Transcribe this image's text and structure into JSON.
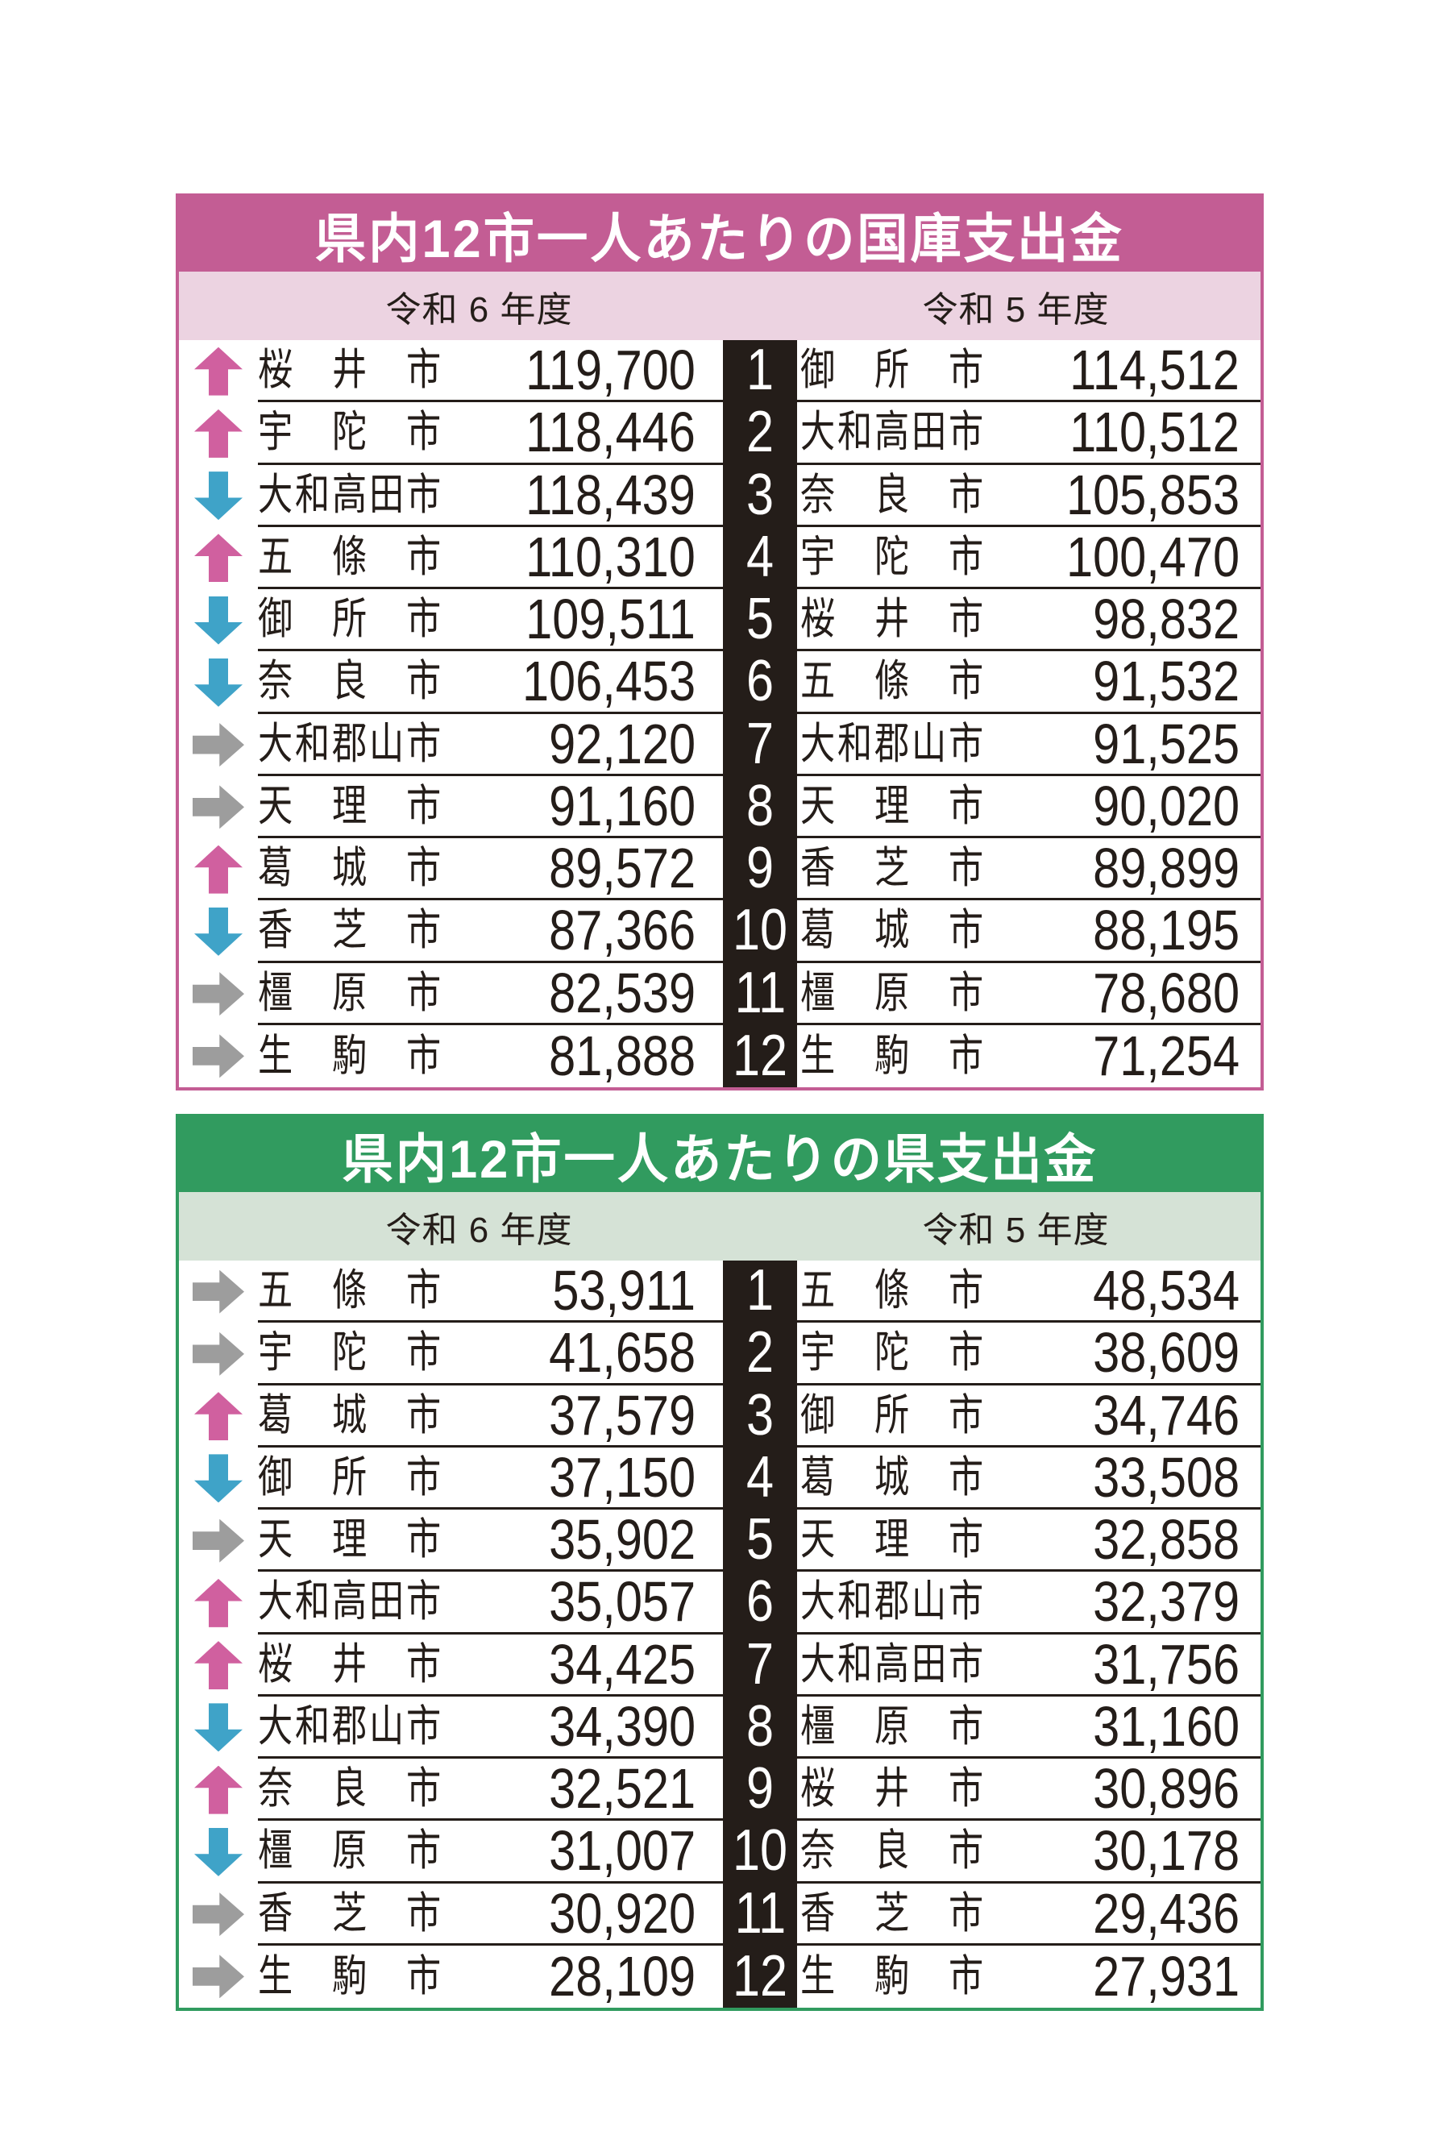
{
  "colors": {
    "text": "#241d19",
    "rank_bg": "#241d19",
    "rank_text": "#ffffff",
    "arrow_up": "#d0609f",
    "arrow_down": "#3fa3c8",
    "arrow_flat": "#9d9d9d"
  },
  "tables": [
    {
      "id": "national-treasury",
      "title": "県内12市一人あたりの国庫支出金",
      "accent": "#c35d94",
      "sub_bg": "#ecd3e1",
      "col_headers": [
        "令和 6 年度",
        "令和 5 年度"
      ],
      "rows": [
        {
          "rank": "1",
          "trend": "up",
          "city_r6": "桜井市",
          "value_r6": "119,700",
          "city_r5": "御所市",
          "value_r5": "114,512"
        },
        {
          "rank": "2",
          "trend": "up",
          "city_r6": "宇陀市",
          "value_r6": "118,446",
          "city_r5": "大和高田市",
          "value_r5": "110,512"
        },
        {
          "rank": "3",
          "trend": "down",
          "city_r6": "大和高田市",
          "value_r6": "118,439",
          "city_r5": "奈良市",
          "value_r5": "105,853"
        },
        {
          "rank": "4",
          "trend": "up",
          "city_r6": "五條市",
          "value_r6": "110,310",
          "city_r5": "宇陀市",
          "value_r5": "100,470"
        },
        {
          "rank": "5",
          "trend": "down",
          "city_r6": "御所市",
          "value_r6": "109,511",
          "city_r5": "桜井市",
          "value_r5": "98,832"
        },
        {
          "rank": "6",
          "trend": "down",
          "city_r6": "奈良市",
          "value_r6": "106,453",
          "city_r5": "五條市",
          "value_r5": "91,532"
        },
        {
          "rank": "7",
          "trend": "flat",
          "city_r6": "大和郡山市",
          "value_r6": "92,120",
          "city_r5": "大和郡山市",
          "value_r5": "91,525"
        },
        {
          "rank": "8",
          "trend": "flat",
          "city_r6": "天理市",
          "value_r6": "91,160",
          "city_r5": "天理市",
          "value_r5": "90,020"
        },
        {
          "rank": "9",
          "trend": "up",
          "city_r6": "葛城市",
          "value_r6": "89,572",
          "city_r5": "香芝市",
          "value_r5": "89,899"
        },
        {
          "rank": "10",
          "trend": "down",
          "city_r6": "香芝市",
          "value_r6": "87,366",
          "city_r5": "葛城市",
          "value_r5": "88,195"
        },
        {
          "rank": "11",
          "trend": "flat",
          "city_r6": "橿原市",
          "value_r6": "82,539",
          "city_r5": "橿原市",
          "value_r5": "78,680"
        },
        {
          "rank": "12",
          "trend": "flat",
          "city_r6": "生駒市",
          "value_r6": "81,888",
          "city_r5": "生駒市",
          "value_r5": "71,254"
        }
      ]
    },
    {
      "id": "prefectural",
      "title": "県内12市一人あたりの県支出金",
      "accent": "#319b5f",
      "sub_bg": "#d5e2d6",
      "col_headers": [
        "令和 6 年度",
        "令和 5 年度"
      ],
      "rows": [
        {
          "rank": "1",
          "trend": "flat",
          "city_r6": "五條市",
          "value_r6": "53,911",
          "city_r5": "五條市",
          "value_r5": "48,534"
        },
        {
          "rank": "2",
          "trend": "flat",
          "city_r6": "宇陀市",
          "value_r6": "41,658",
          "city_r5": "宇陀市",
          "value_r5": "38,609"
        },
        {
          "rank": "3",
          "trend": "up",
          "city_r6": "葛城市",
          "value_r6": "37,579",
          "city_r5": "御所市",
          "value_r5": "34,746"
        },
        {
          "rank": "4",
          "trend": "down",
          "city_r6": "御所市",
          "value_r6": "37,150",
          "city_r5": "葛城市",
          "value_r5": "33,508"
        },
        {
          "rank": "5",
          "trend": "flat",
          "city_r6": "天理市",
          "value_r6": "35,902",
          "city_r5": "天理市",
          "value_r5": "32,858"
        },
        {
          "rank": "6",
          "trend": "up",
          "city_r6": "大和高田市",
          "value_r6": "35,057",
          "city_r5": "大和郡山市",
          "value_r5": "32,379"
        },
        {
          "rank": "7",
          "trend": "up",
          "city_r6": "桜井市",
          "value_r6": "34,425",
          "city_r5": "大和高田市",
          "value_r5": "31,756"
        },
        {
          "rank": "8",
          "trend": "down",
          "city_r6": "大和郡山市",
          "value_r6": "34,390",
          "city_r5": "橿原市",
          "value_r5": "31,160"
        },
        {
          "rank": "9",
          "trend": "up",
          "city_r6": "奈良市",
          "value_r6": "32,521",
          "city_r5": "桜井市",
          "value_r5": "30,896"
        },
        {
          "rank": "10",
          "trend": "down",
          "city_r6": "橿原市",
          "value_r6": "31,007",
          "city_r5": "奈良市",
          "value_r5": "30,178"
        },
        {
          "rank": "11",
          "trend": "flat",
          "city_r6": "香芝市",
          "value_r6": "30,920",
          "city_r5": "香芝市",
          "value_r5": "29,436"
        },
        {
          "rank": "12",
          "trend": "flat",
          "city_r6": "生駒市",
          "value_r6": "28,109",
          "city_r5": "生駒市",
          "value_r5": "27,931"
        }
      ]
    }
  ],
  "chart_data": [
    {
      "type": "table",
      "title": "県内12市一人あたりの国庫支出金",
      "columns": [
        "trend_vs_prev_year",
        "city_reiwa6",
        "value_reiwa6",
        "rank",
        "city_reiwa5",
        "value_reiwa5"
      ],
      "rows": [
        [
          "up",
          "桜井市",
          119700,
          1,
          "御所市",
          114512
        ],
        [
          "up",
          "宇陀市",
          118446,
          2,
          "大和高田市",
          110512
        ],
        [
          "down",
          "大和高田市",
          118439,
          3,
          "奈良市",
          105853
        ],
        [
          "up",
          "五條市",
          110310,
          4,
          "宇陀市",
          100470
        ],
        [
          "down",
          "御所市",
          109511,
          5,
          "桜井市",
          98832
        ],
        [
          "down",
          "奈良市",
          106453,
          6,
          "五條市",
          91532
        ],
        [
          "flat",
          "大和郡山市",
          92120,
          7,
          "大和郡山市",
          91525
        ],
        [
          "flat",
          "天理市",
          91160,
          8,
          "天理市",
          90020
        ],
        [
          "up",
          "葛城市",
          89572,
          9,
          "香芝市",
          89899
        ],
        [
          "down",
          "香芝市",
          87366,
          10,
          "葛城市",
          88195
        ],
        [
          "flat",
          "橿原市",
          82539,
          11,
          "橿原市",
          78680
        ],
        [
          "flat",
          "生駒市",
          81888,
          12,
          "生駒市",
          71254
        ]
      ]
    },
    {
      "type": "table",
      "title": "県内12市一人あたりの県支出金",
      "columns": [
        "trend_vs_prev_year",
        "city_reiwa6",
        "value_reiwa6",
        "rank",
        "city_reiwa5",
        "value_reiwa5"
      ],
      "rows": [
        [
          "flat",
          "五條市",
          53911,
          1,
          "五條市",
          48534
        ],
        [
          "flat",
          "宇陀市",
          41658,
          2,
          "宇陀市",
          38609
        ],
        [
          "up",
          "葛城市",
          37579,
          3,
          "御所市",
          34746
        ],
        [
          "down",
          "御所市",
          37150,
          4,
          "葛城市",
          33508
        ],
        [
          "flat",
          "天理市",
          35902,
          5,
          "天理市",
          32858
        ],
        [
          "up",
          "大和高田市",
          35057,
          6,
          "大和郡山市",
          32379
        ],
        [
          "up",
          "桜井市",
          34425,
          7,
          "大和高田市",
          31756
        ],
        [
          "down",
          "大和郡山市",
          34390,
          8,
          "橿原市",
          31160
        ],
        [
          "up",
          "奈良市",
          32521,
          9,
          "桜井市",
          30896
        ],
        [
          "down",
          "橿原市",
          31007,
          10,
          "奈良市",
          30178
        ],
        [
          "flat",
          "香芝市",
          30920,
          11,
          "香芝市",
          29436
        ],
        [
          "flat",
          "生駒市",
          28109,
          12,
          "生駒市",
          27931
        ]
      ]
    }
  ]
}
